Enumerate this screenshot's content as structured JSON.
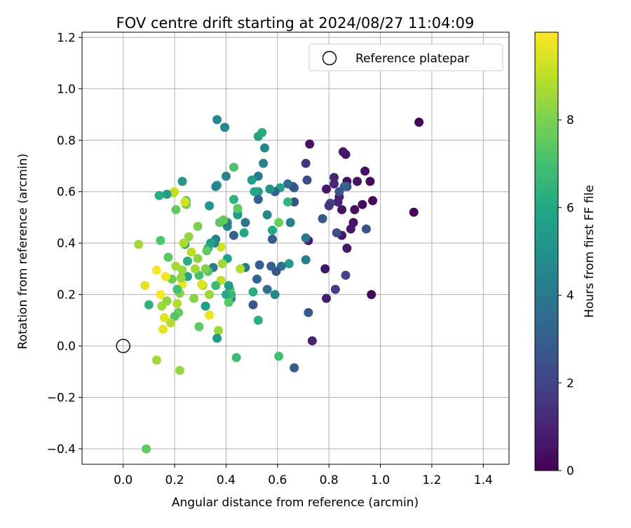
{
  "chart_data": {
    "type": "scatter",
    "title": "FOV centre drift starting at 2024/08/27 11:04:09",
    "xlabel": "Angular distance from reference (arcmin)",
    "ylabel": "Rotation from reference (arcmin)",
    "xlim": [
      -0.16,
      1.5
    ],
    "ylim": [
      -0.46,
      1.22
    ],
    "xticks": [
      0.0,
      0.2,
      0.4,
      0.6,
      0.8,
      1.0,
      1.2,
      1.4
    ],
    "xtick_labels": [
      "0.0",
      "0.2",
      "0.4",
      "0.6",
      "0.8",
      "1.0",
      "1.2",
      "1.4"
    ],
    "yticks": [
      -0.4,
      -0.2,
      0.0,
      0.2,
      0.4,
      0.6,
      0.8,
      1.0,
      1.2
    ],
    "ytick_labels": [
      "−0.4",
      "−0.2",
      "0.0",
      "0.2",
      "0.4",
      "0.6",
      "0.8",
      "1.0",
      "1.2"
    ],
    "grid": true,
    "legend": {
      "placement": "top-right",
      "entries": [
        {
          "label": "Reference platepar",
          "marker": "open-circle"
        }
      ]
    },
    "reference_point": {
      "x": 0.0,
      "y": 0.0
    },
    "colorbar": {
      "label": "Hours from first FF file",
      "colormap": "viridis",
      "range": [
        0,
        10
      ],
      "ticks": [
        0,
        2,
        4,
        6,
        8
      ],
      "tick_labels": [
        "0",
        "2",
        "4",
        "6",
        "8"
      ]
    },
    "points": [
      {
        "x": 1.15,
        "y": 0.87,
        "c": 0.1
      },
      {
        "x": 1.13,
        "y": 0.52,
        "c": 0.1
      },
      {
        "x": 0.97,
        "y": 0.565,
        "c": 0.2
      },
      {
        "x": 0.96,
        "y": 0.64,
        "c": 0.3
      },
      {
        "x": 0.94,
        "y": 0.68,
        "c": 0.4
      },
      {
        "x": 0.93,
        "y": 0.55,
        "c": 0.3
      },
      {
        "x": 0.91,
        "y": 0.64,
        "c": 0.5
      },
      {
        "x": 0.9,
        "y": 0.53,
        "c": 0.4
      },
      {
        "x": 0.895,
        "y": 0.48,
        "c": 0.5
      },
      {
        "x": 0.885,
        "y": 0.455,
        "c": 0.6
      },
      {
        "x": 0.87,
        "y": 0.64,
        "c": 0.4
      },
      {
        "x": 0.865,
        "y": 0.745,
        "c": 0.5
      },
      {
        "x": 0.855,
        "y": 0.755,
        "c": 0.7
      },
      {
        "x": 0.85,
        "y": 0.53,
        "c": 0.5
      },
      {
        "x": 0.85,
        "y": 0.43,
        "c": 0.6
      },
      {
        "x": 0.84,
        "y": 0.58,
        "c": 0.8
      },
      {
        "x": 0.835,
        "y": 0.56,
        "c": 0.9
      },
      {
        "x": 0.82,
        "y": 0.655,
        "c": 1.0
      },
      {
        "x": 0.82,
        "y": 0.63,
        "c": 1.1
      },
      {
        "x": 0.79,
        "y": 0.61,
        "c": 0.6
      },
      {
        "x": 0.785,
        "y": 0.3,
        "c": 0.5
      },
      {
        "x": 0.79,
        "y": 0.185,
        "c": 0.8
      },
      {
        "x": 0.825,
        "y": 0.22,
        "c": 1.8
      },
      {
        "x": 0.865,
        "y": 0.275,
        "c": 2.0
      },
      {
        "x": 0.87,
        "y": 0.38,
        "c": 0.6
      },
      {
        "x": 0.965,
        "y": 0.2,
        "c": 0.2
      },
      {
        "x": 0.945,
        "y": 0.455,
        "c": 2.5
      },
      {
        "x": 0.87,
        "y": 0.62,
        "c": 2.2
      },
      {
        "x": 0.86,
        "y": 0.62,
        "c": 3.2
      },
      {
        "x": 0.84,
        "y": 0.6,
        "c": 2.6
      },
      {
        "x": 0.83,
        "y": 0.44,
        "c": 2.4
      },
      {
        "x": 0.805,
        "y": 0.555,
        "c": 2.0
      },
      {
        "x": 0.8,
        "y": 0.545,
        "c": 1.5
      },
      {
        "x": 0.775,
        "y": 0.495,
        "c": 2.8
      },
      {
        "x": 0.725,
        "y": 0.785,
        "c": 0.5
      },
      {
        "x": 0.72,
        "y": 0.41,
        "c": 0.7
      },
      {
        "x": 0.735,
        "y": 0.02,
        "c": 0.9
      },
      {
        "x": 0.72,
        "y": 0.13,
        "c": 2.7
      },
      {
        "x": 0.71,
        "y": 0.71,
        "c": 1.5
      },
      {
        "x": 0.715,
        "y": 0.645,
        "c": 2.3
      },
      {
        "x": 0.71,
        "y": 0.42,
        "c": 4.0
      },
      {
        "x": 0.71,
        "y": 0.335,
        "c": 4.2
      },
      {
        "x": 0.665,
        "y": -0.085,
        "c": 2.8
      },
      {
        "x": 0.665,
        "y": 0.56,
        "c": 2.5
      },
      {
        "x": 0.665,
        "y": 0.615,
        "c": 3.5
      },
      {
        "x": 0.66,
        "y": 0.62,
        "c": 2.5
      },
      {
        "x": 0.65,
        "y": 0.48,
        "c": 4.3
      },
      {
        "x": 0.645,
        "y": 0.32,
        "c": 5.5
      },
      {
        "x": 0.64,
        "y": 0.63,
        "c": 3.6
      },
      {
        "x": 0.64,
        "y": 0.56,
        "c": 6.5
      },
      {
        "x": 0.615,
        "y": 0.31,
        "c": 3.8
      },
      {
        "x": 0.61,
        "y": 0.615,
        "c": 5.6
      },
      {
        "x": 0.605,
        "y": 0.48,
        "c": 7.7
      },
      {
        "x": 0.605,
        "y": -0.04,
        "c": 7.0
      },
      {
        "x": 0.595,
        "y": 0.29,
        "c": 2.6
      },
      {
        "x": 0.59,
        "y": 0.2,
        "c": 4.5
      },
      {
        "x": 0.59,
        "y": 0.6,
        "c": 3.0
      },
      {
        "x": 0.58,
        "y": 0.415,
        "c": 2.9
      },
      {
        "x": 0.58,
        "y": 0.45,
        "c": 6.0
      },
      {
        "x": 0.575,
        "y": 0.31,
        "c": 3.0
      },
      {
        "x": 0.57,
        "y": 0.61,
        "c": 5.0
      },
      {
        "x": 0.56,
        "y": 0.22,
        "c": 3.7
      },
      {
        "x": 0.56,
        "y": 0.51,
        "c": 4.5
      },
      {
        "x": 0.55,
        "y": 0.77,
        "c": 4.6
      },
      {
        "x": 0.545,
        "y": 0.71,
        "c": 4.4
      },
      {
        "x": 0.54,
        "y": 0.83,
        "c": 6.2
      },
      {
        "x": 0.525,
        "y": 0.66,
        "c": 4.0
      },
      {
        "x": 0.525,
        "y": 0.6,
        "c": 5.5
      },
      {
        "x": 0.525,
        "y": 0.815,
        "c": 5.8
      },
      {
        "x": 0.525,
        "y": 0.57,
        "c": 3.1
      },
      {
        "x": 0.53,
        "y": 0.315,
        "c": 3.0
      },
      {
        "x": 0.525,
        "y": 0.1,
        "c": 6.3
      },
      {
        "x": 0.52,
        "y": 0.26,
        "c": 3.3
      },
      {
        "x": 0.51,
        "y": 0.6,
        "c": 6.0
      },
      {
        "x": 0.5,
        "y": 0.645,
        "c": 5.5
      },
      {
        "x": 0.505,
        "y": 0.21,
        "c": 6.2
      },
      {
        "x": 0.505,
        "y": 0.16,
        "c": 2.7
      },
      {
        "x": 0.475,
        "y": 0.48,
        "c": 4.0
      },
      {
        "x": 0.475,
        "y": 0.305,
        "c": 4.0
      },
      {
        "x": 0.47,
        "y": 0.44,
        "c": 6.0
      },
      {
        "x": 0.455,
        "y": 0.3,
        "c": 8.8
      },
      {
        "x": 0.445,
        "y": 0.515,
        "c": 7.0
      },
      {
        "x": 0.445,
        "y": 0.51,
        "c": 5.5
      },
      {
        "x": 0.445,
        "y": 0.535,
        "c": 7.5
      },
      {
        "x": 0.44,
        "y": -0.045,
        "c": 6.8
      },
      {
        "x": 0.43,
        "y": 0.43,
        "c": 3.0
      },
      {
        "x": 0.43,
        "y": 0.57,
        "c": 6.4
      },
      {
        "x": 0.43,
        "y": 0.695,
        "c": 7.2
      },
      {
        "x": 0.42,
        "y": 0.185,
        "c": 4.6
      },
      {
        "x": 0.42,
        "y": 0.2,
        "c": 6.6
      },
      {
        "x": 0.415,
        "y": 0.22,
        "c": 7.0
      },
      {
        "x": 0.41,
        "y": 0.235,
        "c": 5.5
      },
      {
        "x": 0.41,
        "y": 0.17,
        "c": 7.4
      },
      {
        "x": 0.405,
        "y": 0.34,
        "c": 5.8
      },
      {
        "x": 0.405,
        "y": 0.465,
        "c": 4.6
      },
      {
        "x": 0.405,
        "y": 0.48,
        "c": 4.2
      },
      {
        "x": 0.4,
        "y": 0.2,
        "c": 6.2
      },
      {
        "x": 0.4,
        "y": 0.66,
        "c": 4.5
      },
      {
        "x": 0.395,
        "y": 0.85,
        "c": 4.5
      },
      {
        "x": 0.39,
        "y": 0.49,
        "c": 7.6
      },
      {
        "x": 0.385,
        "y": 0.32,
        "c": 8.6
      },
      {
        "x": 0.38,
        "y": 0.385,
        "c": 9.3
      },
      {
        "x": 0.38,
        "y": 0.255,
        "c": 9.0
      },
      {
        "x": 0.375,
        "y": 0.48,
        "c": 7.4
      },
      {
        "x": 0.37,
        "y": 0.06,
        "c": 8.5
      },
      {
        "x": 0.365,
        "y": 0.03,
        "c": 5.4
      },
      {
        "x": 0.365,
        "y": 0.88,
        "c": 4.7
      },
      {
        "x": 0.365,
        "y": 0.625,
        "c": 5.9
      },
      {
        "x": 0.36,
        "y": 0.62,
        "c": 4.5
      },
      {
        "x": 0.36,
        "y": 0.415,
        "c": 4.4
      },
      {
        "x": 0.36,
        "y": 0.235,
        "c": 6.8
      },
      {
        "x": 0.355,
        "y": 0.4,
        "c": 4.6
      },
      {
        "x": 0.35,
        "y": 0.305,
        "c": 4.2
      },
      {
        "x": 0.34,
        "y": 0.4,
        "c": 5.6
      },
      {
        "x": 0.335,
        "y": 0.545,
        "c": 5.2
      },
      {
        "x": 0.335,
        "y": 0.2,
        "c": 8.5
      },
      {
        "x": 0.335,
        "y": 0.12,
        "c": 9.8
      },
      {
        "x": 0.33,
        "y": 0.29,
        "c": 7.3
      },
      {
        "x": 0.33,
        "y": 0.38,
        "c": 6.2
      },
      {
        "x": 0.325,
        "y": 0.37,
        "c": 7.5
      },
      {
        "x": 0.32,
        "y": 0.3,
        "c": 8.0
      },
      {
        "x": 0.32,
        "y": 0.155,
        "c": 5.5
      },
      {
        "x": 0.31,
        "y": 0.235,
        "c": 8.8
      },
      {
        "x": 0.305,
        "y": 0.24,
        "c": 9.5
      },
      {
        "x": 0.295,
        "y": 0.275,
        "c": 7.0
      },
      {
        "x": 0.295,
        "y": 0.075,
        "c": 7.5
      },
      {
        "x": 0.29,
        "y": 0.465,
        "c": 8.0
      },
      {
        "x": 0.29,
        "y": 0.34,
        "c": 8.3
      },
      {
        "x": 0.28,
        "y": 0.3,
        "c": 8.6
      },
      {
        "x": 0.275,
        "y": 0.185,
        "c": 8.2
      },
      {
        "x": 0.265,
        "y": 0.365,
        "c": 9.0
      },
      {
        "x": 0.255,
        "y": 0.425,
        "c": 8.4
      },
      {
        "x": 0.25,
        "y": 0.33,
        "c": 6.2
      },
      {
        "x": 0.25,
        "y": 0.27,
        "c": 5.8
      },
      {
        "x": 0.245,
        "y": 0.55,
        "c": 7.9
      },
      {
        "x": 0.245,
        "y": 0.565,
        "c": 7.2
      },
      {
        "x": 0.24,
        "y": 0.395,
        "c": 5.8
      },
      {
        "x": 0.24,
        "y": 0.56,
        "c": 9.3
      },
      {
        "x": 0.235,
        "y": 0.4,
        "c": 8.8
      },
      {
        "x": 0.23,
        "y": 0.64,
        "c": 5.3
      },
      {
        "x": 0.23,
        "y": 0.295,
        "c": 8.5
      },
      {
        "x": 0.23,
        "y": 0.24,
        "c": 9.7
      },
      {
        "x": 0.225,
        "y": 0.265,
        "c": 8.4
      },
      {
        "x": 0.22,
        "y": 0.205,
        "c": 8.2
      },
      {
        "x": 0.22,
        "y": -0.095,
        "c": 8.4
      },
      {
        "x": 0.215,
        "y": 0.13,
        "c": 7.6
      },
      {
        "x": 0.21,
        "y": 0.22,
        "c": 7.0
      },
      {
        "x": 0.21,
        "y": 0.165,
        "c": 8.8
      },
      {
        "x": 0.205,
        "y": 0.53,
        "c": 7.5
      },
      {
        "x": 0.205,
        "y": 0.31,
        "c": 8.6
      },
      {
        "x": 0.2,
        "y": 0.115,
        "c": 7.3
      },
      {
        "x": 0.2,
        "y": 0.6,
        "c": 9.6
      },
      {
        "x": 0.195,
        "y": 0.595,
        "c": 9.0
      },
      {
        "x": 0.19,
        "y": 0.26,
        "c": 7.8
      },
      {
        "x": 0.185,
        "y": 0.09,
        "c": 8.8
      },
      {
        "x": 0.175,
        "y": 0.345,
        "c": 7.4
      },
      {
        "x": 0.17,
        "y": 0.59,
        "c": 5.5
      },
      {
        "x": 0.17,
        "y": 0.175,
        "c": 8.3
      },
      {
        "x": 0.165,
        "y": 0.27,
        "c": 9.8
      },
      {
        "x": 0.16,
        "y": 0.11,
        "c": 9.6
      },
      {
        "x": 0.155,
        "y": 0.065,
        "c": 9.6
      },
      {
        "x": 0.15,
        "y": 0.155,
        "c": 8.5
      },
      {
        "x": 0.145,
        "y": 0.2,
        "c": 9.9
      },
      {
        "x": 0.145,
        "y": 0.41,
        "c": 7.2
      },
      {
        "x": 0.14,
        "y": 0.585,
        "c": 6.2
      },
      {
        "x": 0.13,
        "y": 0.295,
        "c": 9.9
      },
      {
        "x": 0.13,
        "y": -0.055,
        "c": 8.6
      },
      {
        "x": 0.1,
        "y": 0.16,
        "c": 6.4
      },
      {
        "x": 0.09,
        "y": -0.4,
        "c": 7.5
      },
      {
        "x": 0.085,
        "y": 0.235,
        "c": 9.6
      },
      {
        "x": 0.06,
        "y": 0.395,
        "c": 8.6
      }
    ]
  }
}
